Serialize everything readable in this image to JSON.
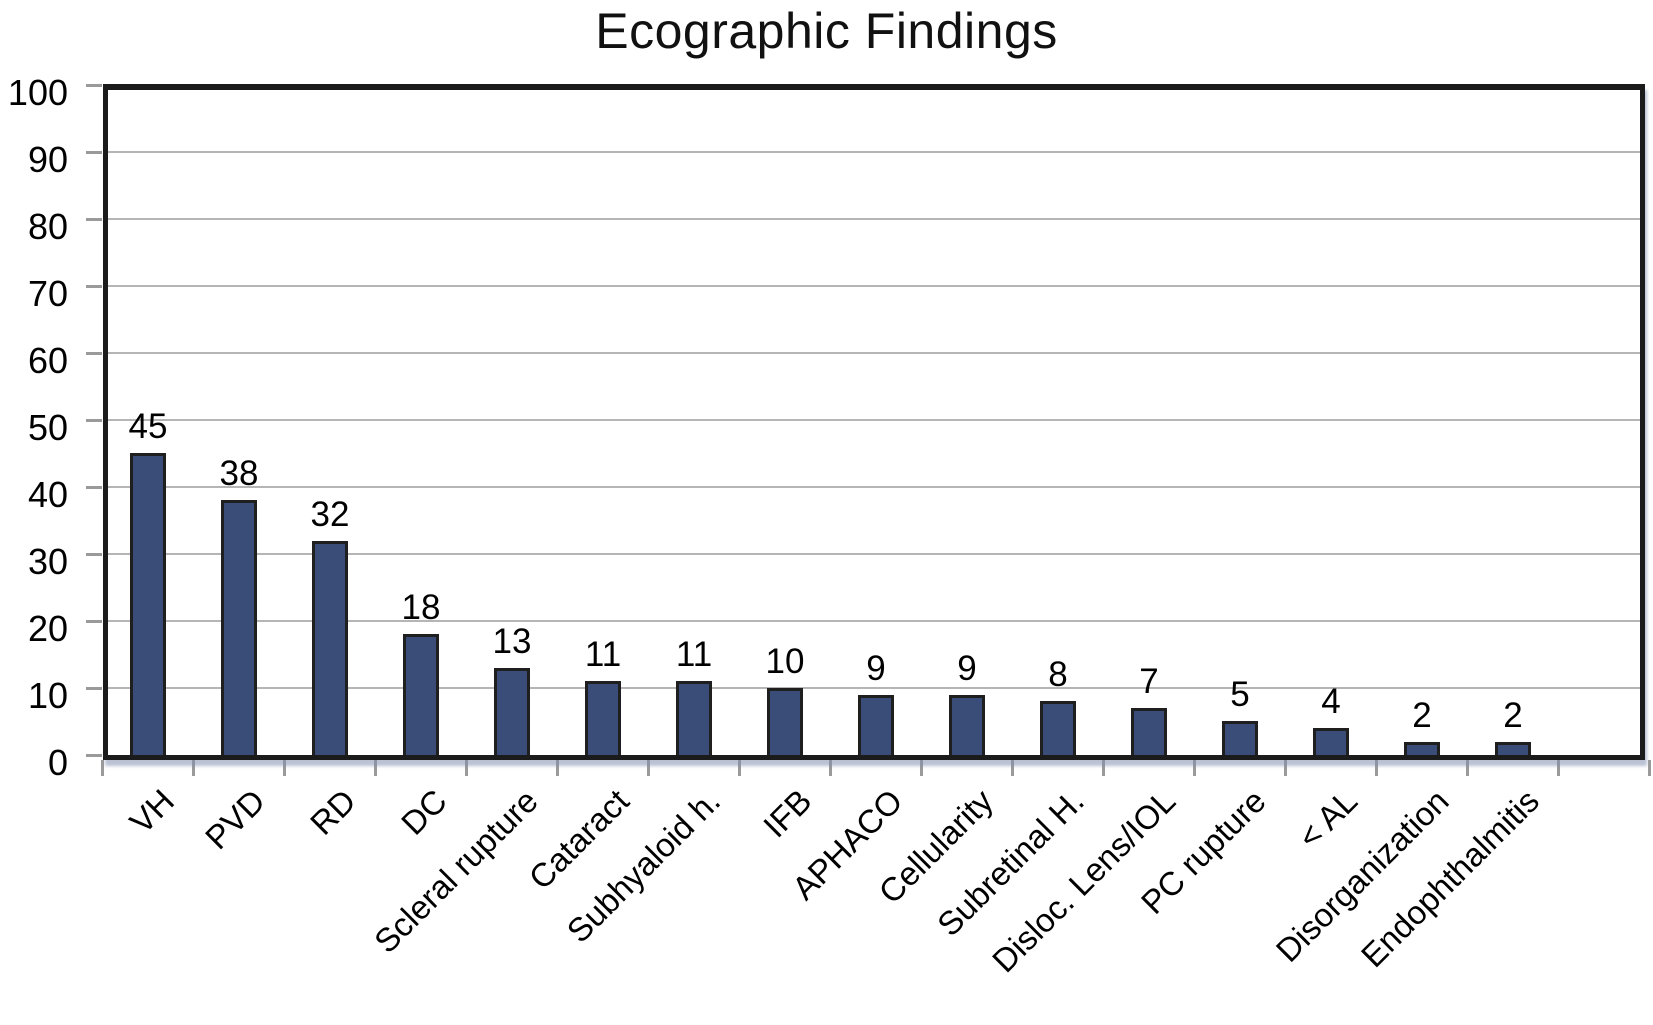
{
  "chart_data": {
    "type": "bar",
    "title": "Ecographic Findings",
    "categories": [
      "VH",
      "PVD",
      "RD",
      "DC",
      "Scleral rupture",
      "Cataract",
      "Subhyaloid h.",
      "IFB",
      "APHACO",
      "Cellularity",
      "Subretinal H.",
      "Disloc. Lens/IOL",
      "PC rupture",
      "< AL",
      "Disorganization",
      "Endophthalmitis"
    ],
    "values": [
      45,
      38,
      32,
      18,
      13,
      11,
      11,
      10,
      9,
      9,
      8,
      7,
      5,
      4,
      2,
      2
    ],
    "xlabel": "",
    "ylabel": "",
    "ylim": [
      0,
      100
    ],
    "yticks": [
      0,
      10,
      20,
      30,
      40,
      50,
      60,
      70,
      80,
      90,
      100
    ],
    "grid": true,
    "legend_position": "none",
    "data_labels_shown": true,
    "x_label_rotation_deg": 45,
    "colors": {
      "bar_fill": "#3A4C78",
      "bar_border": "#1f1f1f",
      "gridline": "#b5b5b5",
      "frame": "#1b1b1b",
      "tick": "#9a9a9a",
      "text": "#000000",
      "background": "#ffffff"
    }
  }
}
